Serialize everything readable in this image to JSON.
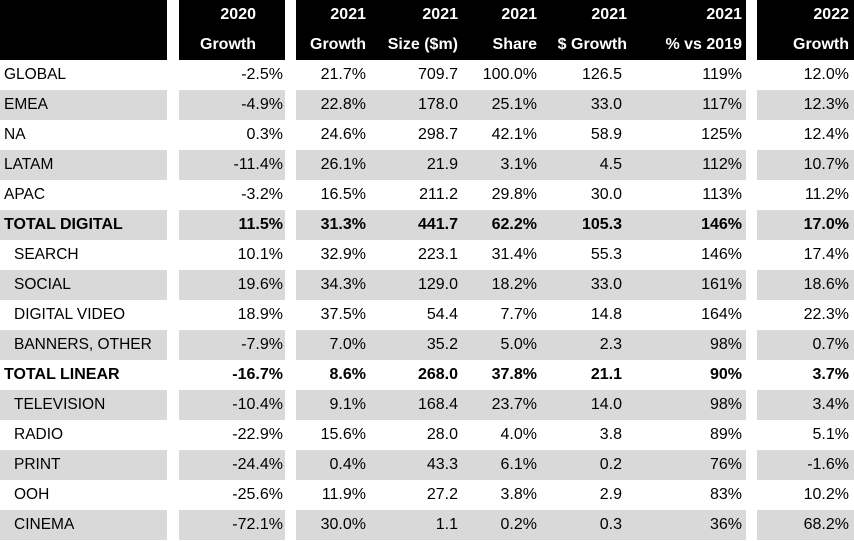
{
  "chart_data": {
    "type": "table",
    "header": {
      "years": [
        "2020",
        "2021",
        "2021",
        "2021",
        "2021",
        "2021",
        "2022"
      ],
      "labels": [
        "Growth",
        "Growth",
        "Size ($m)",
        "Share",
        "$ Growth",
        "% vs 2019",
        "Growth"
      ]
    },
    "rows": [
      {
        "label": "GLOBAL",
        "indent": false,
        "bold": false,
        "shade": false,
        "values": [
          "-2.5%",
          "21.7%",
          "709.7",
          "100.0%",
          "126.5",
          "119%",
          "12.0%"
        ]
      },
      {
        "label": "EMEA",
        "indent": false,
        "bold": false,
        "shade": true,
        "values": [
          "-4.9%",
          "22.8%",
          "178.0",
          "25.1%",
          "33.0",
          "117%",
          "12.3%"
        ]
      },
      {
        "label": "NA",
        "indent": false,
        "bold": false,
        "shade": false,
        "values": [
          "0.3%",
          "24.6%",
          "298.7",
          "42.1%",
          "58.9",
          "125%",
          "12.4%"
        ]
      },
      {
        "label": "LATAM",
        "indent": false,
        "bold": false,
        "shade": true,
        "values": [
          "-11.4%",
          "26.1%",
          "21.9",
          "3.1%",
          "4.5",
          "112%",
          "10.7%"
        ]
      },
      {
        "label": "APAC",
        "indent": false,
        "bold": false,
        "shade": false,
        "values": [
          "-3.2%",
          "16.5%",
          "211.2",
          "29.8%",
          "30.0",
          "113%",
          "11.2%"
        ]
      },
      {
        "label": "TOTAL DIGITAL",
        "indent": false,
        "bold": true,
        "shade": true,
        "values": [
          "11.5%",
          "31.3%",
          "441.7",
          "62.2%",
          "105.3",
          "146%",
          "17.0%"
        ]
      },
      {
        "label": "SEARCH",
        "indent": true,
        "bold": false,
        "shade": false,
        "values": [
          "10.1%",
          "32.9%",
          "223.1",
          "31.4%",
          "55.3",
          "146%",
          "17.4%"
        ]
      },
      {
        "label": "SOCIAL",
        "indent": true,
        "bold": false,
        "shade": true,
        "values": [
          "19.6%",
          "34.3%",
          "129.0",
          "18.2%",
          "33.0",
          "161%",
          "18.6%"
        ]
      },
      {
        "label": "DIGITAL VIDEO",
        "indent": true,
        "bold": false,
        "shade": false,
        "values": [
          "18.9%",
          "37.5%",
          "54.4",
          "7.7%",
          "14.8",
          "164%",
          "22.3%"
        ]
      },
      {
        "label": "BANNERS, OTHER",
        "indent": true,
        "bold": false,
        "shade": true,
        "values": [
          "-7.9%",
          "7.0%",
          "35.2",
          "5.0%",
          "2.3",
          "98%",
          "0.7%"
        ]
      },
      {
        "label": "TOTAL LINEAR",
        "indent": false,
        "bold": true,
        "shade": false,
        "values": [
          "-16.7%",
          "8.6%",
          "268.0",
          "37.8%",
          "21.1",
          "90%",
          "3.7%"
        ]
      },
      {
        "label": "TELEVISION",
        "indent": true,
        "bold": false,
        "shade": true,
        "values": [
          "-10.4%",
          "9.1%",
          "168.4",
          "23.7%",
          "14.0",
          "98%",
          "3.4%"
        ]
      },
      {
        "label": "RADIO",
        "indent": true,
        "bold": false,
        "shade": false,
        "values": [
          "-22.9%",
          "15.6%",
          "28.0",
          "4.0%",
          "3.8",
          "89%",
          "5.1%"
        ]
      },
      {
        "label": "PRINT",
        "indent": true,
        "bold": false,
        "shade": true,
        "values": [
          "-24.4%",
          "0.4%",
          "43.3",
          "6.1%",
          "0.2",
          "76%",
          "-1.6%"
        ]
      },
      {
        "label": "OOH",
        "indent": true,
        "bold": false,
        "shade": false,
        "values": [
          "-25.6%",
          "11.9%",
          "27.2",
          "3.8%",
          "2.9",
          "83%",
          "10.2%"
        ]
      },
      {
        "label": "CINEMA",
        "indent": true,
        "bold": false,
        "shade": true,
        "values": [
          "-72.1%",
          "30.0%",
          "1.1",
          "0.2%",
          "0.3",
          "36%",
          "68.2%"
        ]
      }
    ],
    "colors": {
      "header_bg": "#000000",
      "header_text": "#ffffff",
      "shade": "#d9d9d9"
    }
  }
}
